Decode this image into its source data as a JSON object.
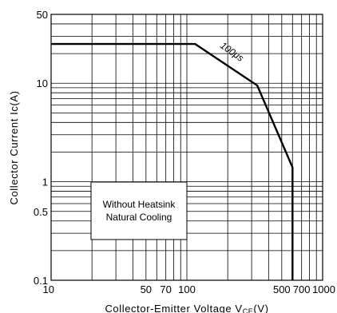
{
  "chart_data": {
    "type": "line",
    "x_scale": "log",
    "y_scale": "log",
    "xlim": [
      10,
      1000
    ],
    "ylim": [
      0.1,
      50
    ],
    "xlabel": "Collector-Emitter Voltage V",
    "xlabel_sub": "CE",
    "xlabel_unit": "(V)",
    "ylabel": "Collector Current Ic(A)",
    "grid": true,
    "x_ticks": [
      {
        "value": 10,
        "label": "10"
      },
      {
        "value": 50,
        "label": "50"
      },
      {
        "value": 70,
        "label": "70"
      },
      {
        "value": 100,
        "label": "100"
      },
      {
        "value": 500,
        "label": "500"
      },
      {
        "value": 700,
        "label": "700"
      },
      {
        "value": 1000,
        "label": "1000"
      }
    ],
    "y_ticks": [
      {
        "value": 50,
        "label": "50"
      },
      {
        "value": 10,
        "label": "10"
      },
      {
        "value": 1,
        "label": "1"
      },
      {
        "value": 0.5,
        "label": "0.5"
      },
      {
        "value": 0.1,
        "label": "0.1"
      }
    ],
    "series": [
      {
        "name": "100μs",
        "color": "#000000",
        "points": [
          [
            10,
            25
          ],
          [
            115,
            25
          ],
          [
            330,
            9.5
          ],
          [
            600,
            1.4
          ],
          [
            600,
            0.1
          ]
        ]
      }
    ],
    "annotation": {
      "text": "100μs"
    },
    "note_lines": [
      "Without Heatsink",
      "Natural Cooling"
    ]
  }
}
